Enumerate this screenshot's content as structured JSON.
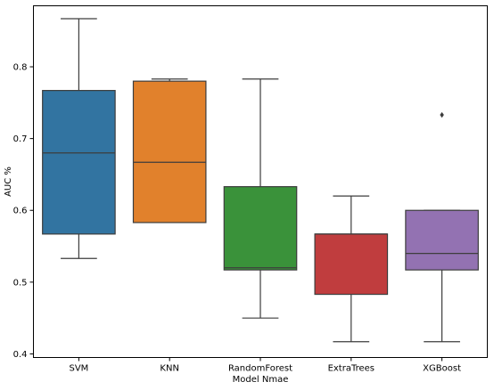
{
  "chart_data": {
    "type": "boxplot",
    "xlabel": "Model Nmae",
    "ylabel": "AUC %",
    "ylim": [
      0.395,
      0.885
    ],
    "yticks": [
      0.4,
      0.5,
      0.6,
      0.7,
      0.8
    ],
    "grid": false,
    "categories": [
      "SVM",
      "KNN",
      "RandomForest",
      "ExtraTrees",
      "XGBoost"
    ],
    "series": [
      {
        "category": "SVM",
        "whisker_low": 0.533,
        "q1": 0.567,
        "median": 0.68,
        "q3": 0.767,
        "whisker_high": 0.867,
        "fliers": [],
        "color": "#3274a1"
      },
      {
        "category": "KNN",
        "whisker_low": 0.583,
        "q1": 0.583,
        "median": 0.667,
        "q3": 0.78,
        "whisker_high": 0.783,
        "fliers": [],
        "color": "#e1812c"
      },
      {
        "category": "RandomForest",
        "whisker_low": 0.45,
        "q1": 0.517,
        "median": 0.52,
        "q3": 0.633,
        "whisker_high": 0.783,
        "fliers": [],
        "color": "#3a923a"
      },
      {
        "category": "ExtraTrees",
        "whisker_low": 0.417,
        "q1": 0.483,
        "median": 0.567,
        "q3": 0.567,
        "whisker_high": 0.62,
        "fliers": [],
        "color": "#c03d3e"
      },
      {
        "category": "XGBoost",
        "whisker_low": 0.417,
        "q1": 0.517,
        "median": 0.54,
        "q3": 0.6,
        "whisker_high": 0.6,
        "fliers": [
          0.733
        ],
        "color": "#9372b2"
      }
    ]
  }
}
